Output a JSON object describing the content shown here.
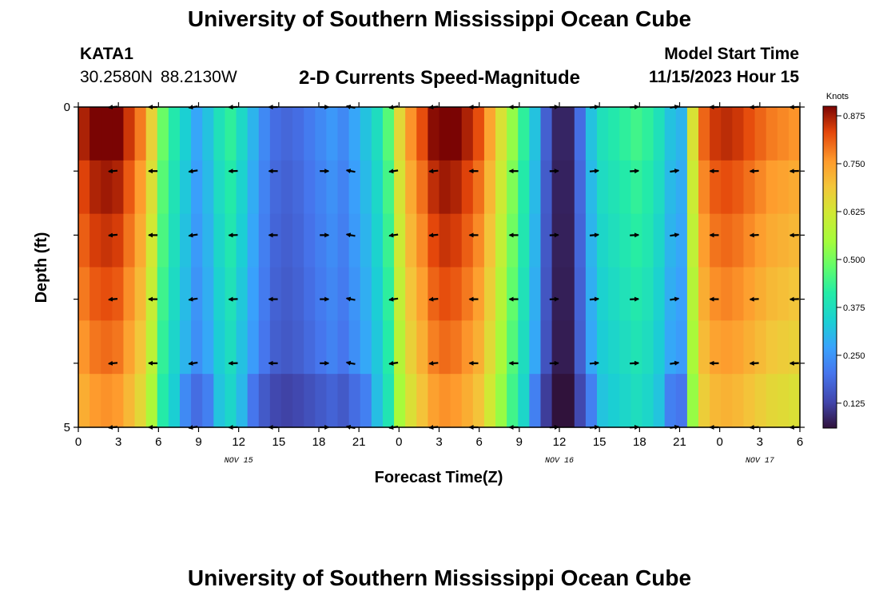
{
  "header": {
    "title": "University of Southern Mississippi Ocean Cube",
    "station_id": "KATA1",
    "coordinates": "30.2580N  88.2130W",
    "subtitle": "2-D Currents Speed-Magnitude",
    "model_start_label": "Model Start Time",
    "model_start_value": "11/15/2023 Hour 15"
  },
  "footer": {
    "title": "University of Southern Mississippi Ocean Cube"
  },
  "chart_data": {
    "type": "heatmap",
    "title": "2-D Currents Speed-Magnitude",
    "xlabel": "Forecast Time(Z)",
    "ylabel": "Depth (ft)",
    "x_tick_labels": [
      "0",
      "3",
      "6",
      "9",
      "12",
      "15",
      "18",
      "21",
      "0",
      "3",
      "6",
      "9",
      "12",
      "15",
      "18",
      "21",
      "0",
      "3",
      "6"
    ],
    "x_hours": [
      0,
      54
    ],
    "date_labels": [
      {
        "text": "NOV 15",
        "hour": 12
      },
      {
        "text": "NOV 16",
        "hour": 36
      },
      {
        "text": "NOV 17",
        "hour": 51
      }
    ],
    "y_tick_labels": [
      "0",
      "5"
    ],
    "ylim": [
      0,
      5
    ],
    "colorbar": {
      "label": "Knots",
      "range": [
        0.06,
        0.9
      ],
      "tick_labels": [
        "0.875",
        "0.750",
        "0.625",
        "0.500",
        "0.375",
        "0.250",
        "0.125"
      ],
      "tick_values": [
        0.875,
        0.75,
        0.625,
        0.5,
        0.375,
        0.25,
        0.125
      ]
    },
    "speed_profile_knots": [
      0.82,
      0.85,
      0.86,
      0.85,
      0.8,
      0.74,
      0.63,
      0.46,
      0.38,
      0.32,
      0.26,
      0.3,
      0.36,
      0.4,
      0.34,
      0.28,
      0.22,
      0.18,
      0.17,
      0.18,
      0.2,
      0.22,
      0.24,
      0.22,
      0.26,
      0.3,
      0.35,
      0.44,
      0.62,
      0.72,
      0.78,
      0.84,
      0.86,
      0.85,
      0.82,
      0.78,
      0.7,
      0.6,
      0.5,
      0.4,
      0.3,
      0.16,
      0.08,
      0.08,
      0.18,
      0.3,
      0.36,
      0.38,
      0.4,
      0.42,
      0.4,
      0.36,
      0.3,
      0.28,
      0.6,
      0.76,
      0.8,
      0.81,
      0.8,
      0.78,
      0.76,
      0.74,
      0.73,
      0.72
    ],
    "depth_row_factors": [
      1.06,
      1.02,
      0.99,
      0.96,
      0.93,
      0.89
    ],
    "arrow_columns_hour": [
      2.6,
      5.6,
      8.6,
      11.6,
      14.6,
      18.4,
      20.4,
      23.6,
      26.6,
      29.6,
      32.6,
      35.6,
      38.6,
      41.6,
      44.6,
      47.6,
      50.6,
      53.6
    ],
    "arrow_rows_depth": [
      0,
      1,
      2,
      3,
      4,
      5
    ],
    "arrow_directions_deg": [
      185,
      180,
      188,
      182,
      180,
      0,
      170,
      188,
      185,
      180,
      180,
      2,
      5,
      3,
      8,
      180,
      183,
      182
    ]
  }
}
